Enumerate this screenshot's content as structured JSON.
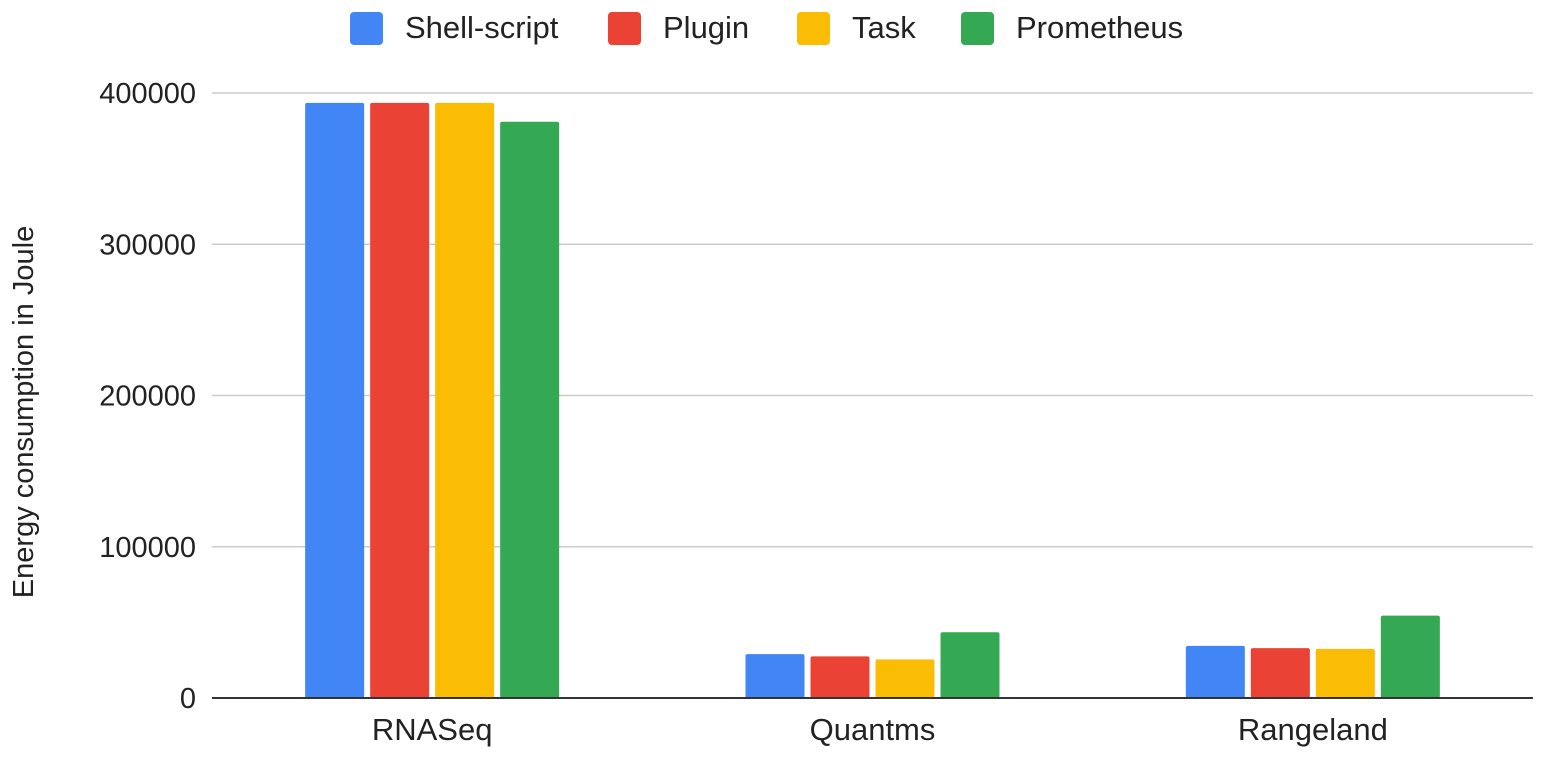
{
  "chart_data": {
    "type": "bar",
    "title": "",
    "xlabel": "",
    "ylabel": "Energy consumption in Joule",
    "categories": [
      "RNASeq",
      "Quantms",
      "Rangeland"
    ],
    "series": [
      {
        "name": "Shell-script",
        "color": "#4285F4",
        "values": [
          393500,
          29000,
          34500
        ]
      },
      {
        "name": "Plugin",
        "color": "#EA4335",
        "values": [
          393500,
          27500,
          33000
        ]
      },
      {
        "name": "Task",
        "color": "#FBBC04",
        "values": [
          393500,
          25500,
          32500
        ]
      },
      {
        "name": "Prometheus",
        "color": "#34A853",
        "values": [
          381000,
          43500,
          54500
        ]
      }
    ],
    "ylim": [
      0,
      400000
    ],
    "yticks": [
      0,
      100000,
      200000,
      300000,
      400000
    ],
    "yticklabels": [
      "0",
      "100000",
      "200000",
      "300000",
      "400000"
    ],
    "grid": true,
    "legend_position": "top-center"
  }
}
